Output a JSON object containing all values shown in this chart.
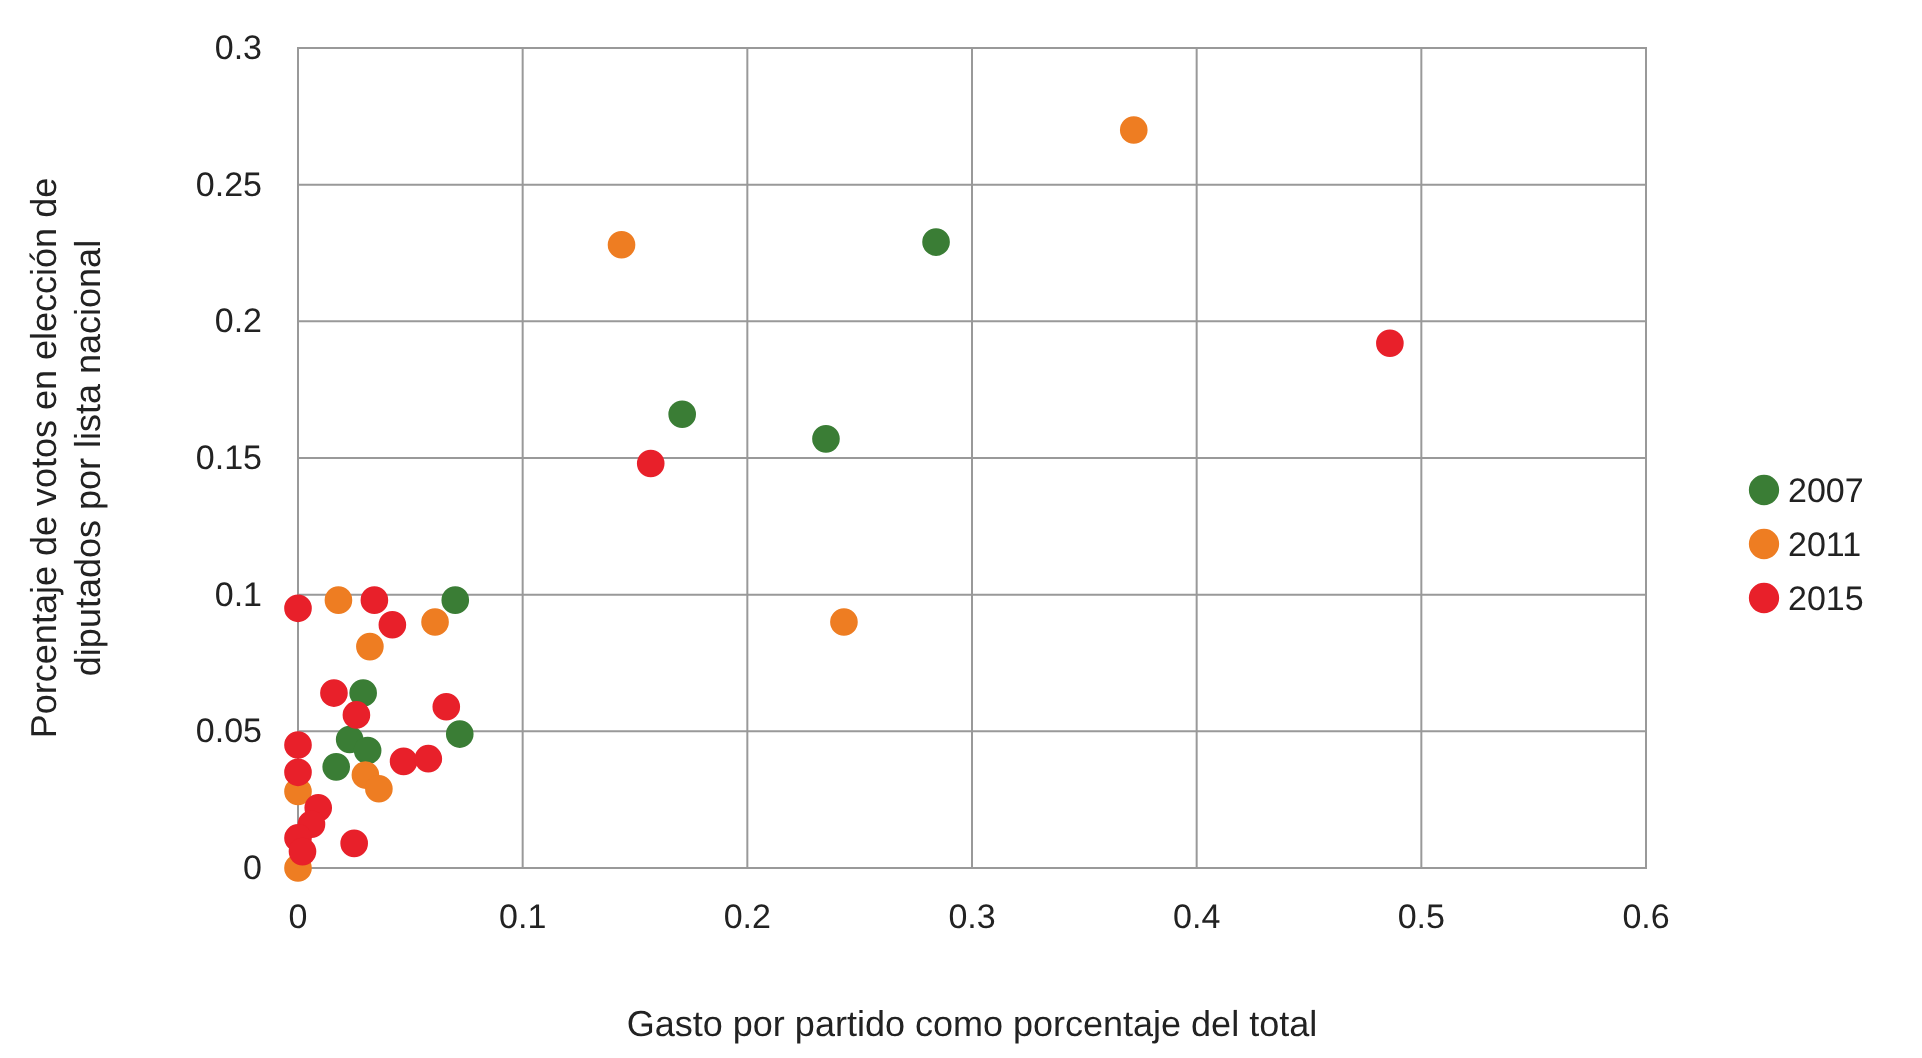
{
  "chart_data": {
    "type": "scatter",
    "xlabel": "Gasto por partido como porcentaje del total",
    "ylabel": "Porcentaje de votos en elección de diputados por lista nacional",
    "xlim": [
      0,
      0.6
    ],
    "xticks": [
      0,
      0.1,
      0.2,
      0.3,
      0.4,
      0.5,
      0.6
    ],
    "ylim": [
      0,
      0.3
    ],
    "yticks": [
      0,
      0.05,
      0.1,
      0.15,
      0.2,
      0.25,
      0.3
    ],
    "grid": true,
    "legend": "right",
    "marker": "circle",
    "series": [
      {
        "name": "2007",
        "color": "#3a7d35",
        "x": [
          0.284,
          0.171,
          0.235,
          0.07,
          0.029,
          0.072,
          0.023,
          0.031,
          0.017
        ],
        "values": [
          0.229,
          0.166,
          0.157,
          0.098,
          0.064,
          0.049,
          0.047,
          0.043,
          0.037
        ]
      },
      {
        "name": "2011",
        "color": "#ee7d22",
        "x": [
          0.372,
          0.144,
          0.243,
          0.018,
          0.061,
          0.032,
          0.03,
          0.036,
          0,
          0
        ],
        "values": [
          0.27,
          0.228,
          0.09,
          0.098,
          0.09,
          0.081,
          0.034,
          0.029,
          0.028,
          0
        ]
      },
      {
        "name": "2015",
        "color": "#e8202a",
        "x": [
          0.486,
          0.157,
          0,
          0.034,
          0.042,
          0.016,
          0.026,
          0.066,
          0,
          0,
          0.047,
          0.058,
          0.009,
          0.006,
          0,
          0.002,
          0.025
        ],
        "values": [
          0.192,
          0.148,
          0.095,
          0.098,
          0.089,
          0.064,
          0.056,
          0.059,
          0.045,
          0.035,
          0.039,
          0.04,
          0.022,
          0.016,
          0.011,
          0.006,
          0.009
        ]
      }
    ]
  }
}
